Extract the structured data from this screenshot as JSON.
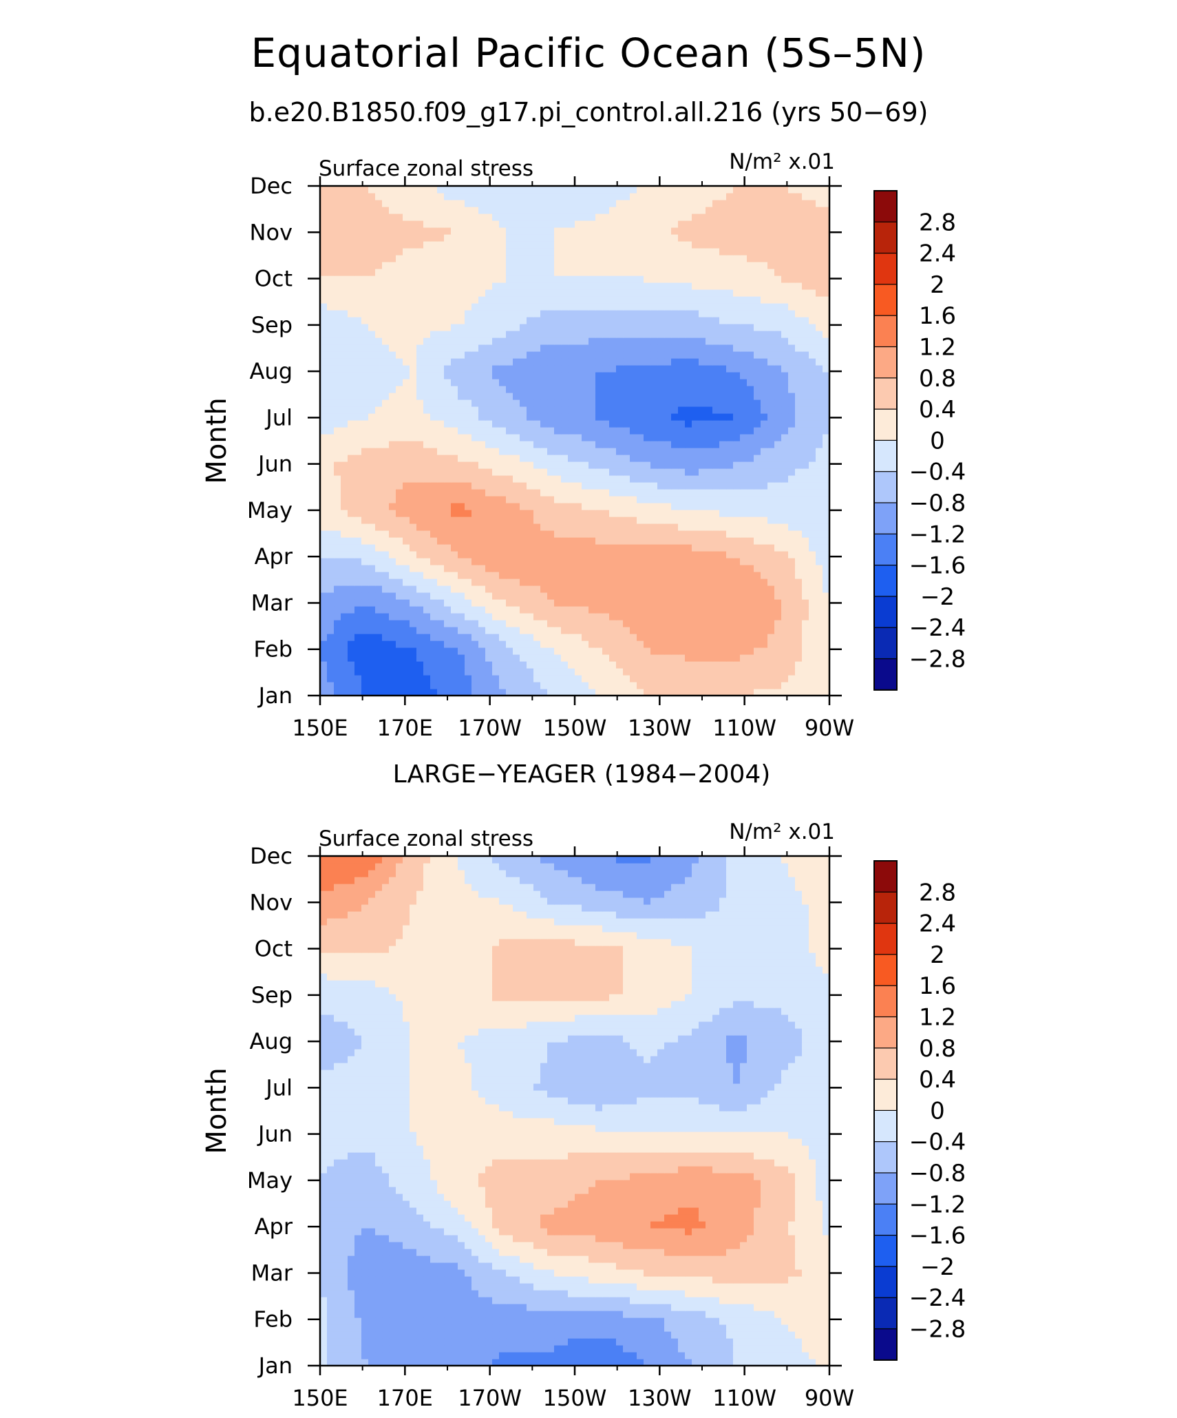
{
  "title": "Equatorial Pacific Ocean (5S–5N)",
  "subtitle": "b.e20.B1850.f09_g17.pi_control.all.216 (yrs 50−69)",
  "colors": {
    "levels": [
      "#0a0a8c",
      "#0a2ab4",
      "#0a3cd2",
      "#1e5ff0",
      "#4b80f5",
      "#7ea2f8",
      "#aec7fb",
      "#d6e7fd",
      "#fdebd9",
      "#fccab0",
      "#fca985",
      "#fb8152",
      "#f85a22",
      "#e03610",
      "#b8240a",
      "#8c0a0a"
    ],
    "boundaries": [
      -2.8,
      -2.4,
      -2,
      -1.6,
      -1.2,
      -0.8,
      -0.4,
      0,
      0.4,
      0.8,
      1.2,
      1.6,
      2,
      2.4,
      2.8
    ]
  },
  "chart_data": [
    {
      "type": "heatmap",
      "panel_title": "",
      "left_label": "Surface zonal stress",
      "right_label": "N/m² x.01",
      "ylabel": "Month",
      "x": [
        "150E",
        "170E",
        "170W",
        "150W",
        "130W",
        "110W",
        "90W"
      ],
      "y": [
        "Jan",
        "Feb",
        "Mar",
        "Apr",
        "May",
        "Jun",
        "Jul",
        "Aug",
        "Sep",
        "Oct",
        "Nov",
        "Dec"
      ],
      "colorbar_labels": [
        "2.8",
        "2.4",
        "2",
        "1.6",
        "1.2",
        "0.8",
        "0.4",
        "0",
        "−0.4",
        "−0.8",
        "−1.2",
        "−1.6",
        "−2",
        "−2.4",
        "−2.8"
      ],
      "values": [
        [
          -1.0,
          -1.6,
          -1.8,
          -1.4,
          -0.8,
          -0.4,
          0.0,
          0.4,
          0.4,
          0.4,
          0.3,
          0.0
        ],
        [
          -1.2,
          -1.9,
          -1.6,
          -1.2,
          -0.5,
          0.0,
          0.4,
          0.8,
          0.9,
          0.9,
          0.7,
          0.0
        ],
        [
          -0.9,
          -1.2,
          -0.8,
          -0.2,
          0.4,
          0.8,
          0.9,
          1.0,
          1.2,
          1.2,
          0.8,
          0.0
        ],
        [
          -0.4,
          -0.3,
          0.3,
          0.8,
          1.2,
          1.0,
          1.0,
          1.0,
          1.0,
          0.8,
          0.5,
          -0.2
        ],
        [
          0.2,
          0.6,
          1.0,
          1.3,
          1.0,
          0.6,
          0.4,
          0.2,
          0.0,
          -0.1,
          -0.2,
          -0.3
        ],
        [
          0.3,
          0.6,
          0.7,
          0.5,
          0.2,
          -0.2,
          -0.5,
          -0.8,
          -1.0,
          -0.8,
          -0.5,
          -0.3
        ],
        [
          -0.2,
          0.0,
          0.1,
          -0.2,
          -0.6,
          -1.0,
          -1.2,
          -1.5,
          -1.7,
          -1.6,
          -1.0,
          -0.4
        ],
        [
          -0.3,
          -0.1,
          0.0,
          -0.6,
          -0.9,
          -1.1,
          -1.2,
          -1.3,
          -1.4,
          -1.2,
          -0.8,
          -0.4
        ],
        [
          -0.3,
          0.0,
          0.1,
          0.0,
          -0.3,
          -0.6,
          -0.6,
          -0.6,
          -0.6,
          -0.4,
          -0.3,
          0.2
        ],
        [
          0.4,
          0.4,
          0.2,
          0.2,
          0.0,
          0.0,
          0.0,
          0.0,
          0.1,
          0.2,
          0.4,
          0.6
        ],
        [
          0.8,
          0.6,
          0.5,
          0.4,
          0.0,
          0.0,
          0.1,
          0.3,
          0.5,
          0.6,
          0.6,
          0.5
        ],
        [
          0.8,
          0.4,
          0.1,
          -0.2,
          -0.3,
          -0.3,
          -0.2,
          0.0,
          0.2,
          0.4,
          0.4,
          0.3
        ]
      ]
    },
    {
      "type": "heatmap",
      "panel_title": "LARGE−YEAGER (1984−2004)",
      "left_label": "Surface zonal stress",
      "right_label": "N/m² x.01",
      "ylabel": "Month",
      "x": [
        "150E",
        "170E",
        "170W",
        "150W",
        "130W",
        "110W",
        "90W"
      ],
      "y": [
        "Jan",
        "Feb",
        "Mar",
        "Apr",
        "May",
        "Jun",
        "Jul",
        "Aug",
        "Sep",
        "Oct",
        "Nov",
        "Dec"
      ],
      "colorbar_labels": [
        "2.8",
        "2.4",
        "2",
        "1.6",
        "1.2",
        "0.8",
        "0.4",
        "0",
        "−0.4",
        "−0.8",
        "−1.2",
        "−1.6",
        "−2",
        "−2.4",
        "−2.8"
      ],
      "values": [
        [
          -0.3,
          -0.8,
          -0.9,
          -1.0,
          -1.3,
          -1.3,
          -1.6,
          -1.2,
          -0.8,
          -0.4,
          -0.2,
          0.1
        ],
        [
          -0.3,
          -0.9,
          -1.0,
          -0.9,
          -1.0,
          -1.0,
          -1.0,
          -0.9,
          -0.6,
          -0.3,
          0.0,
          0.2
        ],
        [
          -0.4,
          -1.1,
          -1.0,
          -0.9,
          -0.4,
          0.0,
          0.2,
          0.4,
          0.5,
          0.6,
          0.5,
          0.2
        ],
        [
          -0.5,
          -0.8,
          -0.6,
          -0.2,
          0.6,
          0.9,
          1.0,
          1.2,
          1.3,
          1.0,
          0.5,
          -0.1
        ],
        [
          -0.4,
          -0.6,
          -0.2,
          0.3,
          0.6,
          0.6,
          0.8,
          0.9,
          1.1,
          1.0,
          0.6,
          -0.2
        ],
        [
          -0.3,
          -0.3,
          0.0,
          0.2,
          0.2,
          0.2,
          0.1,
          0.0,
          0.0,
          0.0,
          0.0,
          -0.2
        ],
        [
          -0.3,
          -0.2,
          0.0,
          0.1,
          -0.2,
          -0.5,
          -0.8,
          -0.5,
          -0.5,
          -0.8,
          -0.3,
          -0.2
        ],
        [
          -0.6,
          -0.4,
          0.0,
          0.0,
          -0.2,
          -0.4,
          -0.6,
          -0.3,
          -0.5,
          -0.9,
          -0.6,
          -0.2
        ],
        [
          -0.3,
          -0.2,
          0.1,
          0.2,
          0.5,
          0.5,
          0.5,
          0.3,
          0.0,
          -0.3,
          -0.3,
          -0.1
        ],
        [
          0.4,
          0.5,
          0.3,
          0.2,
          0.5,
          0.6,
          0.5,
          0.3,
          0.0,
          -0.4,
          -0.3,
          0.2
        ],
        [
          1.1,
          0.8,
          0.4,
          0.1,
          0.0,
          -0.4,
          -0.6,
          -0.8,
          -0.6,
          -0.3,
          -0.1,
          0.1
        ],
        [
          1.6,
          1.5,
          0.6,
          0.0,
          -0.6,
          -0.9,
          -1.2,
          -1.3,
          -0.9,
          -0.3,
          0.0,
          0.3
        ]
      ]
    }
  ]
}
